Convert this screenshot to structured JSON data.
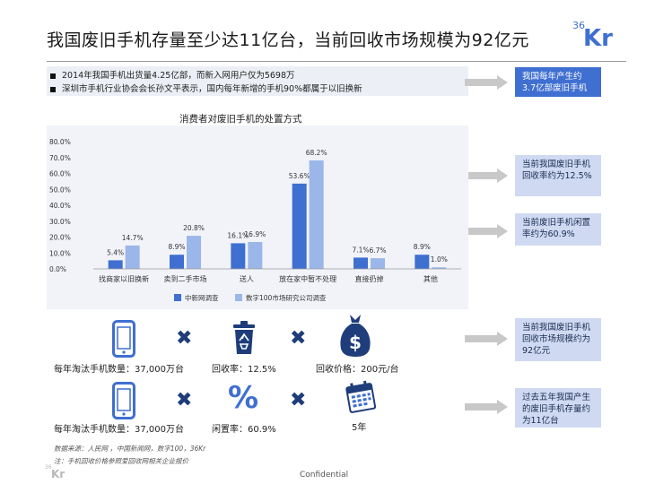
{
  "header": {
    "title": "我国废旧手机存量至少达11亿台，当前回收市场规模为92亿元",
    "logo_num": "36",
    "logo_text": "Kr"
  },
  "bullets": [
    "2014年我国手机出货量4.25亿部，而新入网用户仅为5698万",
    "深圳市手机行业协会会长孙文平表示，国内每年新增的手机90%都属于以旧换新"
  ],
  "callouts": [
    "我国每年产生约3.7亿部废旧手机",
    "当前我国废旧手机回收率约为12.5%",
    "当前废旧手机闲置率约为60.9%",
    "当前我国废旧手机回收市场规模约为92亿元",
    "过去五年我国产生的废旧手机存量约为11亿台"
  ],
  "chart_data": {
    "type": "bar",
    "title": "消费者对废旧手机的处置方式",
    "categories": [
      "找商家以旧换新",
      "卖到二手市场",
      "送人",
      "放在家中暂不处理",
      "直接扔掉",
      "其他"
    ],
    "series": [
      {
        "name": "中新网调查",
        "values": [
          5.4,
          8.9,
          16.1,
          53.6,
          7.1,
          8.9
        ],
        "labels": [
          "5.4%",
          "8.9%",
          "16.1%",
          "53.6%",
          "7.1%",
          "8.9%"
        ],
        "color": "#3f6fd1"
      },
      {
        "name": "数字100市场研究公司调查",
        "values": [
          14.7,
          20.8,
          16.9,
          68.2,
          6.7,
          1.0
        ],
        "labels": [
          "14.7%",
          "20.8%",
          "16.9%",
          "68.2%",
          "6.7%",
          "1.0%"
        ],
        "color": "#9bb6e8"
      }
    ],
    "yticks": [
      "0.0%",
      "10.0%",
      "20.0%",
      "30.0%",
      "40.0%",
      "50.0%",
      "60.0%",
      "70.0%",
      "80.0%"
    ],
    "ylim": [
      0,
      80
    ],
    "legend_position": "bottom",
    "grid": false
  },
  "formula": {
    "row1": {
      "left": "每年淘汰手机数量：37,000万台",
      "mid": "回收率：12.5%",
      "right": "回收价格：200元/台"
    },
    "row2": {
      "left": "每年淘汰手机数量：37,000万台",
      "mid": "闲置率：60.9%",
      "right": "5年"
    },
    "times": "✖",
    "percent": "%"
  },
  "footer": {
    "source": "数据来源：人民网 ，中国新闻网，数字100，36Kr",
    "note": "注：手机回收价格参照爱回收网相关企业报价",
    "confidential": "Confidential"
  },
  "colors": {
    "primary": "#3f6fd1",
    "secondary": "#9bb6e8",
    "callout_light": "#cfdaf2",
    "icon_dark": "#1e3d7a"
  }
}
